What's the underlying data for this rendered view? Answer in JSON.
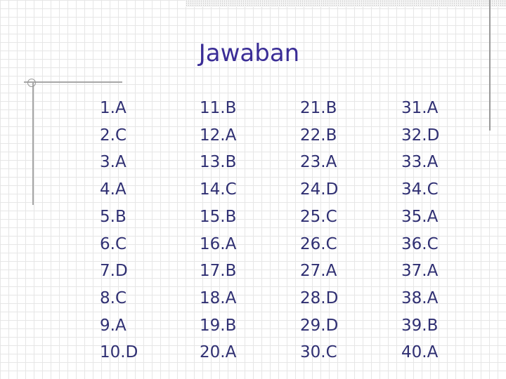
{
  "title": "Jawaban",
  "columns": [
    [
      "1.A",
      "2.C",
      "3.A",
      "4.A",
      "5.B",
      "6.C",
      "7.D",
      "8.C",
      "9.A",
      "10.D"
    ],
    [
      "11.B",
      "12.A",
      "13.B",
      "14.C",
      "15.B",
      "16.A",
      "17.B",
      "18.A",
      "19.B",
      "20.A"
    ],
    [
      "21.B",
      "22.B",
      "23.A",
      "24.D",
      "25.C",
      "26.C",
      "27.A",
      "28.D",
      "29.D",
      "30.C"
    ],
    [
      "31.A",
      "32.D",
      "33.A",
      "34.C",
      "35.A",
      "36.C",
      "37.A",
      "38.A",
      "39.B",
      "40.A"
    ]
  ],
  "colors": {
    "title": "#3a2d96",
    "answers": "#2f2f72",
    "grid": "#e6e6e6",
    "rules": "#a7a7a7"
  }
}
